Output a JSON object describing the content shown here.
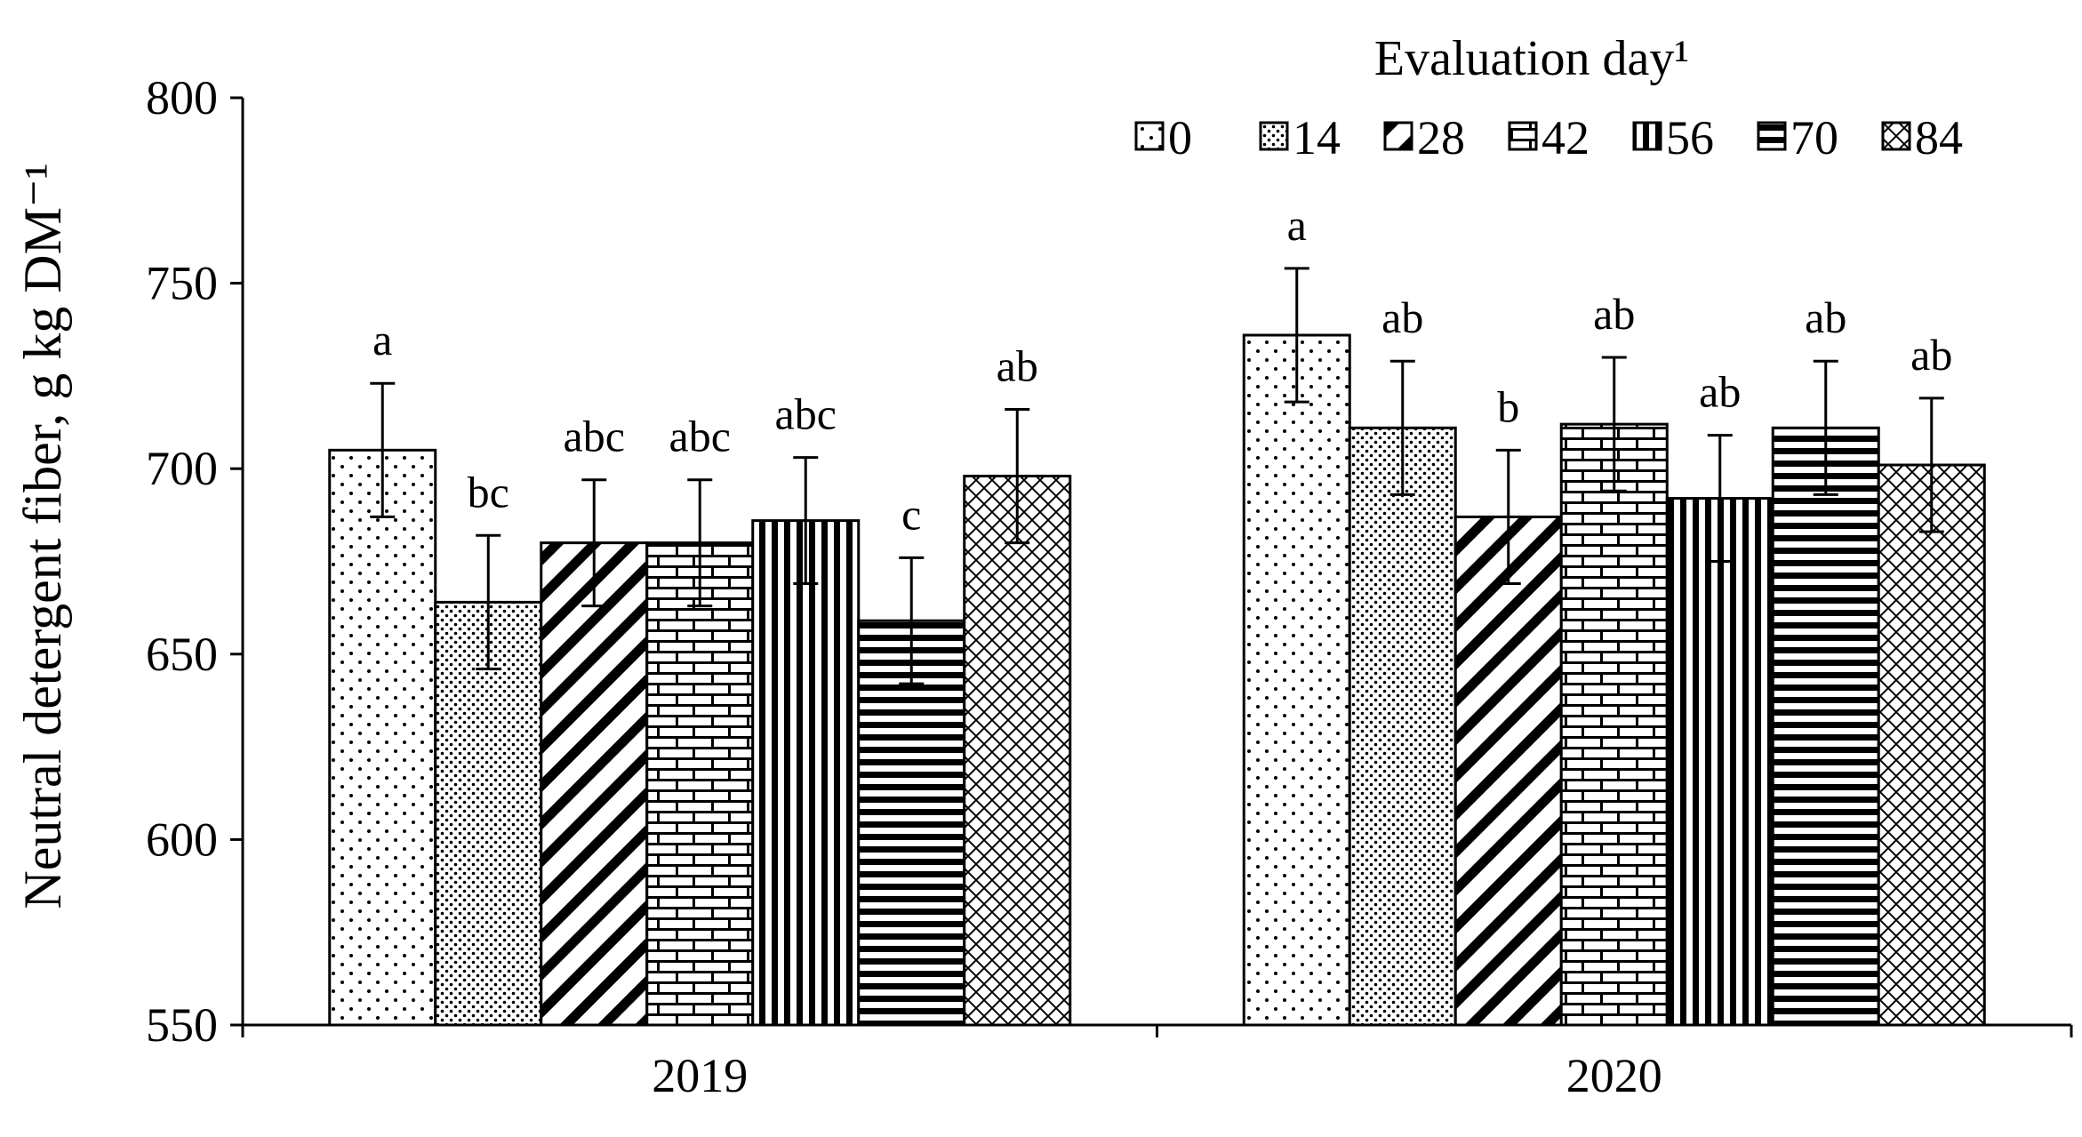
{
  "chart_data": {
    "type": "bar",
    "title": "",
    "xlabel": "",
    "ylabel": "Neutral detergent fiber, g kg DM⁻¹",
    "ylim": [
      550,
      800
    ],
    "yticks": [
      "550",
      "600",
      "650",
      "700",
      "750",
      "800"
    ],
    "categories": [
      "2019",
      "2020"
    ],
    "legend_title": "Evaluation day¹",
    "legend_position": "top-right",
    "series": [
      {
        "name": "0",
        "pattern": "dots",
        "values": [
          705,
          736
        ],
        "errors": [
          18,
          18
        ],
        "labels": [
          "a",
          "a"
        ]
      },
      {
        "name": "14",
        "pattern": "fine-dots",
        "values": [
          664,
          711
        ],
        "errors": [
          18,
          18
        ],
        "labels": [
          "bc",
          "ab"
        ]
      },
      {
        "name": "28",
        "pattern": "diagonal",
        "values": [
          680,
          687
        ],
        "errors": [
          17,
          18
        ],
        "labels": [
          "abc",
          "b"
        ]
      },
      {
        "name": "42",
        "pattern": "brick",
        "values": [
          680,
          712
        ],
        "errors": [
          17,
          18
        ],
        "labels": [
          "abc",
          "ab"
        ]
      },
      {
        "name": "56",
        "pattern": "vertical",
        "values": [
          686,
          692
        ],
        "errors": [
          17,
          17
        ],
        "labels": [
          "abc",
          "ab"
        ]
      },
      {
        "name": "70",
        "pattern": "horizontal",
        "values": [
          659,
          711
        ],
        "errors": [
          17,
          18
        ],
        "labels": [
          "c",
          "ab"
        ]
      },
      {
        "name": "84",
        "pattern": "crosshatch",
        "values": [
          698,
          701
        ],
        "errors": [
          18,
          18
        ],
        "labels": [
          "ab",
          "ab"
        ]
      }
    ]
  }
}
